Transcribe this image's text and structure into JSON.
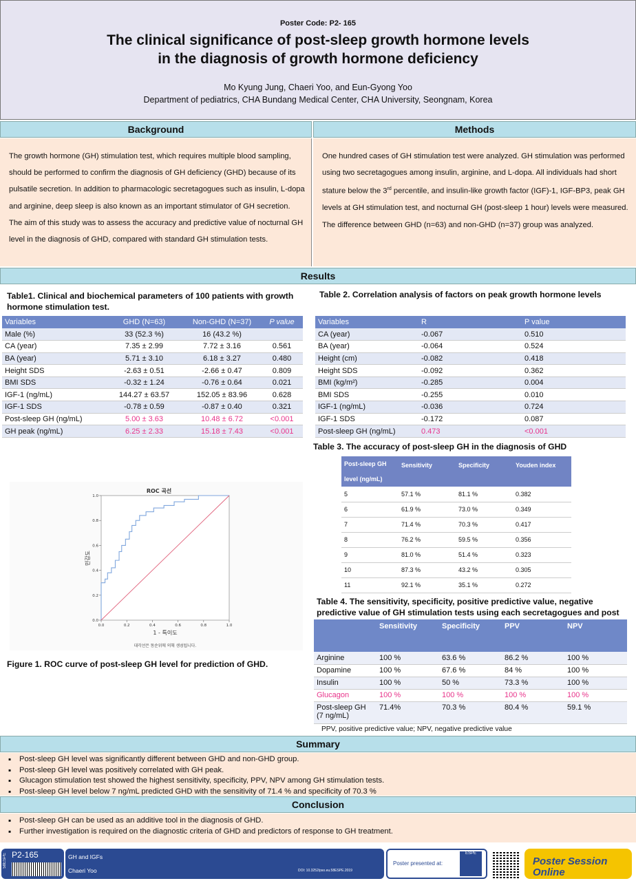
{
  "header": {
    "poster_code": "Poster Code: P2- 165",
    "title_line1": "The clinical significance of post-sleep growth hormone levels",
    "title_line2": "in the diagnosis of growth hormone deficiency",
    "authors": "Mo Kyung Jung, Chaeri Yoo, and Eun-Gyong Yoo",
    "affiliation": "Department of pediatrics, CHA Bundang Medical Center, CHA University, Seongnam, Korea"
  },
  "background": {
    "heading": "Background",
    "text": "The growth hormone (GH) stimulation test, which requires multiple blood sampling, should be performed to confirm the diagnosis of GH deficiency (GHD) because of its pulsatile secretion. In addition to pharmacologic secretagogues such as insulin, L-dopa and arginine, deep sleep is also known as an important stimulator of GH secretion. The aim of this study was to assess the accuracy and predictive value of nocturnal GH level in the diagnosis of GHD, compared with standard GH stimulation tests."
  },
  "methods": {
    "heading": "Methods",
    "text_before": "One hundred cases of GH stimulation test were analyzed. GH stimulation was performed using two secretagogues among insulin, arginine, and L-dopa. All individuals had short stature below the 3",
    "text_sup": "rd",
    "text_after": " percentile, and insulin-like growth factor (IGF)-1, IGF-BP3, peak GH levels at GH stimulation test, and nocturnal GH (post-sleep 1 hour) levels were measured. The difference between GHD (n=63) and non-GHD (n=37) group was analyzed."
  },
  "results": {
    "heading": "Results",
    "table1": {
      "caption": "Table1. Clinical and biochemical parameters of 100 patients with growth hormone stimulation test.",
      "headers": [
        "Variables",
        "GHD (N=63)",
        "Non-GHD (N=37)",
        "P value"
      ],
      "rows": [
        [
          "Male (%)",
          "33 (52.3 %)",
          "16 (43.2 %)",
          ""
        ],
        [
          "CA (year)",
          "7.35 ± 2.99",
          "7.72 ± 3.16",
          "0.561"
        ],
        [
          "BA (year)",
          "5.71 ± 3.10",
          "6.18 ± 3.27",
          "0.480"
        ],
        [
          "Height SDS",
          "-2.63 ± 0.51",
          "-2.66 ± 0.47",
          "0.809"
        ],
        [
          "BMI SDS",
          "-0.32 ± 1.24",
          "-0.76 ± 0.64",
          "0.021"
        ],
        [
          " IGF-1 (ng/mL)",
          "144.27 ± 63.57",
          "152.05 ± 83.96",
          "0.628"
        ],
        [
          " IGF-1 SDS",
          "-0.78 ± 0.59",
          "-0.87 ± 0.40",
          "0.321"
        ],
        [
          "Post-sleep GH (ng/mL)",
          "5.00 ± 3.63",
          "10.48 ± 6.72",
          "<0.001"
        ],
        [
          "GH peak (ng/mL)",
          "6.25 ± 2.33",
          "15.18 ± 7.43",
          "<0.001"
        ]
      ]
    },
    "table2": {
      "caption": "Table 2. Correlation analysis of factors on peak growth hormone levels",
      "headers": [
        "Variables",
        "R",
        "P value"
      ],
      "rows": [
        [
          "CA (year)",
          "-0.067",
          "0.510"
        ],
        [
          "BA (year)",
          "-0.064",
          "0.524"
        ],
        [
          "Height (cm)",
          "-0.082",
          "0.418"
        ],
        [
          "Height SDS",
          "-0.092",
          "0.362"
        ],
        [
          "BMI (kg/m²)",
          "-0.285",
          "0.004"
        ],
        [
          "BMI SDS",
          "-0.255",
          "0.010"
        ],
        [
          "IGF-1 (ng/mL)",
          "-0.036",
          "0.724"
        ],
        [
          "IGF-1 SDS",
          "-0.172",
          "0.087"
        ],
        [
          "Post-sleep GH (ng/mL)",
          "0.473",
          "<0.001"
        ]
      ]
    },
    "table3": {
      "caption": "Table 3. The accuracy of post-sleep GH  in the diagnosis of GHD",
      "headers": [
        "Post-sleep GH level (ng/mL)",
        "Sensitivity",
        "Specificity",
        "Youden index"
      ],
      "rows": [
        [
          "5",
          "57.1 %",
          "81.1 %",
          "0.382"
        ],
        [
          "6",
          "61.9 %",
          "73.0 %",
          "0.349"
        ],
        [
          "7",
          "71.4 %",
          "70.3 %",
          "0.417"
        ],
        [
          "8",
          "76.2 %",
          "59.5 %",
          "0.356"
        ],
        [
          "9",
          "81.0 %",
          "51.4 %",
          "0.323"
        ],
        [
          "10",
          "87.3 %",
          "43.2 %",
          "0.305"
        ],
        [
          "11",
          "92.1 %",
          "35.1 %",
          "0.272"
        ]
      ]
    },
    "table4": {
      "caption_prefix": "Table 4.",
      "caption": " The sensitivity, specificity, positive predictive value, negative predictive value of GH stimulation tests using each secretagogues and post",
      "headers": [
        "",
        "Sensitivity",
        "Specificity",
        "PPV",
        "NPV"
      ],
      "rows": [
        [
          "Arginine",
          "100 %",
          "63.6 %",
          "86.2 %",
          "100 %"
        ],
        [
          "Dopamine",
          "100 %",
          "67.6 %",
          "84 %",
          "100 %"
        ],
        [
          "Insulin",
          "100 %",
          "50 %",
          "73.3 %",
          "100 %"
        ],
        [
          "Glucagon",
          "100 %",
          "100 %",
          "100 %",
          "100 %"
        ],
        [
          "Post-sleep GH\n(7 ng/mL)",
          "71.4%",
          "70.3 %",
          "80.4 %",
          "59.1 %"
        ]
      ],
      "footnote": "PPV, positive predictive value; NPV, negative predictive value"
    },
    "figure1": {
      "caption": "Figure 1. ROC curve of post-sleep GH level for prediction of GHD.",
      "chart_title": "ROC 곡선",
      "xlabel": "1 - 특이도",
      "ylabel": "민감도",
      "note": "대각선은 동순위에 의해 생성됩니다."
    }
  },
  "chart_data": {
    "type": "line",
    "title": "ROC 곡선",
    "xlabel": "1 - 특이도",
    "ylabel": "민감도",
    "xlim": [
      0,
      1
    ],
    "ylim": [
      0,
      1
    ],
    "xticks": [
      "0.0",
      "0.2",
      "0.4",
      "0.6",
      "0.8",
      "1.0"
    ],
    "yticks": [
      "0.0",
      "0.2",
      "0.4",
      "0.6",
      "0.8",
      "1.0"
    ],
    "series": [
      {
        "x": [
          0,
          0,
          0.03,
          0.03,
          0.05,
          0.05,
          0.08,
          0.08,
          0.11,
          0.11,
          0.14,
          0.14,
          0.16,
          0.16,
          0.19,
          0.19,
          0.22,
          0.22,
          0.24,
          0.24,
          0.27,
          0.27,
          0.3,
          0.3,
          0.35,
          0.35,
          0.41,
          0.41,
          0.49,
          0.49,
          0.57,
          0.57,
          0.65,
          0.65,
          0.76,
          0.76,
          0.86,
          0.86,
          1.0
        ],
        "y": [
          0,
          0.3,
          0.3,
          0.33,
          0.33,
          0.38,
          0.38,
          0.42,
          0.42,
          0.48,
          0.48,
          0.55,
          0.55,
          0.6,
          0.6,
          0.65,
          0.65,
          0.71,
          0.71,
          0.76,
          0.76,
          0.8,
          0.8,
          0.84,
          0.84,
          0.87,
          0.87,
          0.9,
          0.9,
          0.92,
          0.92,
          0.95,
          0.95,
          0.97,
          0.97,
          1.0,
          1.0,
          1.0,
          1.0
        ]
      },
      {
        "x": [
          0,
          1
        ],
        "y": [
          0,
          1
        ]
      }
    ],
    "grid": false
  },
  "summary": {
    "heading": "Summary",
    "items": [
      "Post-sleep GH level was significantly different between GHD and non-GHD group.",
      "Post-sleep GH level was positively correlated with GH peak.",
      "Glucagon stimulation test showed the highest sensitivity, specificity, PPV, NPV among GH stimulation tests.",
      "Post-sleep GH level below 7 ng/mL predicted GHD with the sensitivity of 71.4 % and specificity of 70.3 %"
    ]
  },
  "conclusion": {
    "heading": "Conclusion",
    "items": [
      "Post-sleep GH can be used as an additive tool in the diagnosis of GHD.",
      "Further investigation is required on the diagnostic criteria of GHD and predictors of response to GH treatment."
    ]
  },
  "footer": {
    "side_label": "58ESPE",
    "code": "P2-165",
    "category": "GH and IGFs",
    "author": "Chaeri Yoo",
    "doi": "DOI: 10.3252/pso.eu.58ESPE.2019",
    "presented_at": "Poster presented at:",
    "espe_label": "ESPE",
    "brand": "Poster Session Online",
    "brand_url": ".com"
  },
  "colors": {
    "header_bg": "#e6e4f1",
    "section_head": "#b7dfea",
    "peach": "#fde8d9",
    "table_header": "#6f88c8",
    "highlight": "#e8338a",
    "footer_blue": "#2b4a92"
  }
}
